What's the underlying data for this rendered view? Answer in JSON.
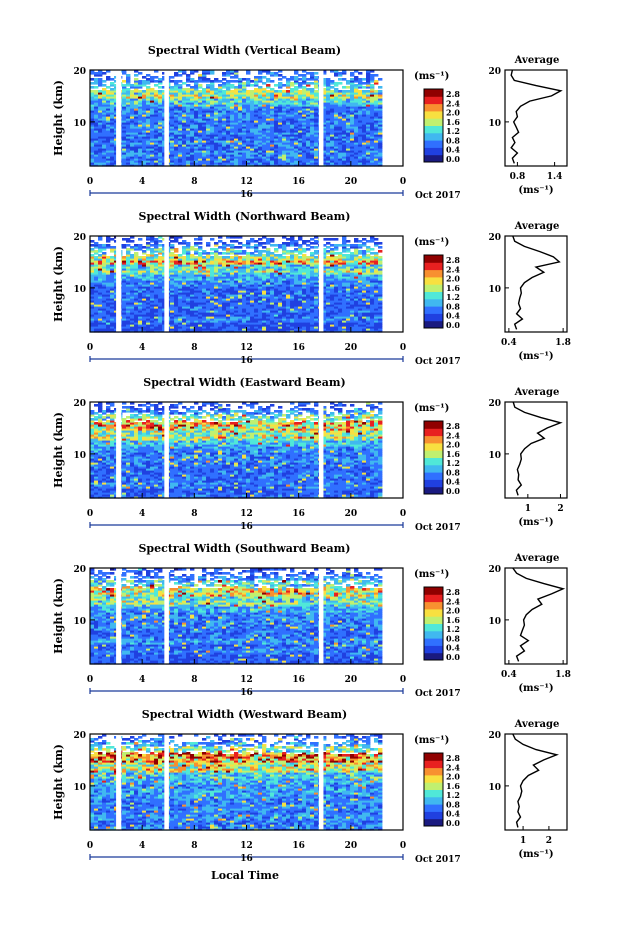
{
  "figure": {
    "xlabel": "Local Time",
    "date_label": "Oct 2017",
    "day_label": "16",
    "avg_title": "Average",
    "colorbar_unit": "(ms⁻¹)",
    "avg_unit": "(ms⁻¹)",
    "colormap": [
      "#1a1a80",
      "#2040e0",
      "#3070ff",
      "#40b8f0",
      "#50e8d8",
      "#c0f070",
      "#f8e040",
      "#f89030",
      "#e82020",
      "#900000"
    ]
  },
  "chart_data": [
    {
      "type": "heatmap",
      "title": "Spectral Width (Vertical Beam)",
      "ylabel": "Height (km)",
      "xlabel": "Local Time",
      "xlim": [
        0,
        24
      ],
      "ylim": [
        1.5,
        20
      ],
      "xticks": [
        "0",
        "4",
        "8",
        "12",
        "16",
        "20",
        "0"
      ],
      "yticks": [
        "10",
        "20"
      ],
      "colorbar": {
        "min": 0.0,
        "max": 2.8,
        "ticks": [
          "0.0",
          "0.4",
          "0.8",
          "1.2",
          "1.6",
          "2.0",
          "2.4",
          "2.8"
        ]
      },
      "average_profile": {
        "xticks": [
          "0.8",
          "1.4"
        ],
        "xlim": [
          0.6,
          1.6
        ],
        "height_km": [
          2,
          3,
          4,
          5,
          6,
          7,
          8,
          9,
          10,
          11,
          12,
          13,
          14,
          15,
          16,
          17,
          18,
          19,
          20
        ],
        "values": [
          0.75,
          0.72,
          0.8,
          0.7,
          0.76,
          0.72,
          0.82,
          0.78,
          0.74,
          0.8,
          0.78,
          0.85,
          1.0,
          1.35,
          1.5,
          1.1,
          0.75,
          0.7,
          0.72
        ]
      }
    },
    {
      "type": "heatmap",
      "title": "Spectral Width (Northward Beam)",
      "ylabel": "Height (km)",
      "xlabel": "Local Time",
      "xlim": [
        0,
        24
      ],
      "ylim": [
        1.5,
        20
      ],
      "xticks": [
        "0",
        "4",
        "8",
        "12",
        "16",
        "20",
        "0"
      ],
      "yticks": [
        "10",
        "20"
      ],
      "colorbar": {
        "min": 0.0,
        "max": 2.8,
        "ticks": [
          "0.0",
          "0.4",
          "0.8",
          "1.2",
          "1.6",
          "2.0",
          "2.4",
          "2.8"
        ]
      },
      "average_profile": {
        "xticks": [
          "0.4",
          "1.8"
        ],
        "xlim": [
          0.3,
          1.9
        ],
        "height_km": [
          2,
          3,
          4,
          5,
          6,
          7,
          8,
          9,
          10,
          11,
          12,
          13,
          14,
          15,
          16,
          17,
          18,
          19,
          20
        ],
        "values": [
          0.6,
          0.55,
          0.75,
          0.6,
          0.7,
          0.65,
          0.68,
          0.72,
          0.7,
          0.8,
          1.0,
          1.3,
          1.1,
          1.7,
          1.55,
          1.2,
          0.8,
          0.55,
          0.5
        ]
      }
    },
    {
      "type": "heatmap",
      "title": "Spectral Width (Eastward Beam)",
      "ylabel": "Height (km)",
      "xlabel": "Local Time",
      "xlim": [
        0,
        24
      ],
      "ylim": [
        1.5,
        20
      ],
      "xticks": [
        "0",
        "4",
        "8",
        "12",
        "16",
        "20",
        "0"
      ],
      "yticks": [
        "10",
        "20"
      ],
      "colorbar": {
        "min": 0.0,
        "max": 2.8,
        "ticks": [
          "0.0",
          "0.4",
          "0.8",
          "1.2",
          "1.6",
          "2.0",
          "2.4",
          "2.8"
        ]
      },
      "average_profile": {
        "xticks": [
          "1",
          "2"
        ],
        "xlim": [
          0.3,
          2.2
        ],
        "height_km": [
          2,
          3,
          4,
          5,
          6,
          7,
          8,
          9,
          10,
          11,
          12,
          13,
          14,
          15,
          16,
          17,
          18,
          19,
          20
        ],
        "values": [
          0.7,
          0.65,
          0.8,
          0.7,
          0.72,
          0.68,
          0.75,
          0.8,
          0.78,
          0.9,
          1.1,
          1.5,
          1.3,
          1.6,
          2.0,
          1.4,
          0.9,
          0.6,
          0.55
        ]
      }
    },
    {
      "type": "heatmap",
      "title": "Spectral Width (Southward Beam)",
      "ylabel": "Height (km)",
      "xlabel": "Local Time",
      "xlim": [
        0,
        24
      ],
      "ylim": [
        1.5,
        20
      ],
      "xticks": [
        "0",
        "4",
        "8",
        "12",
        "16",
        "20",
        "0"
      ],
      "yticks": [
        "10",
        "20"
      ],
      "colorbar": {
        "min": 0.0,
        "max": 2.8,
        "ticks": [
          "0.0",
          "0.4",
          "0.8",
          "1.2",
          "1.6",
          "2.0",
          "2.4",
          "2.8"
        ]
      },
      "average_profile": {
        "xticks": [
          "0.4",
          "1.8"
        ],
        "xlim": [
          0.3,
          1.9
        ],
        "height_km": [
          2,
          3,
          4,
          5,
          6,
          7,
          8,
          9,
          10,
          11,
          12,
          13,
          14,
          15,
          16,
          17,
          18,
          19,
          20
        ],
        "values": [
          0.65,
          0.6,
          0.8,
          0.7,
          0.9,
          0.7,
          0.75,
          0.8,
          0.78,
          0.85,
          1.0,
          1.25,
          1.15,
          1.5,
          1.8,
          1.3,
          0.85,
          0.6,
          0.5
        ]
      }
    },
    {
      "type": "heatmap",
      "title": "Spectral Width (Westward Beam)",
      "ylabel": "Height (km)",
      "xlabel": "Local Time",
      "xlim": [
        0,
        24
      ],
      "ylim": [
        1.5,
        20
      ],
      "xticks": [
        "0",
        "4",
        "8",
        "12",
        "16",
        "20",
        "0"
      ],
      "yticks": [
        "10",
        "20"
      ],
      "colorbar": {
        "min": 0.0,
        "max": 2.8,
        "ticks": [
          "0.0",
          "0.4",
          "0.8",
          "1.2",
          "1.6",
          "2.0",
          "2.4",
          "2.8"
        ]
      },
      "average_profile": {
        "xticks": [
          "1",
          "2"
        ],
        "xlim": [
          0.3,
          2.7
        ],
        "height_km": [
          2,
          3,
          4,
          5,
          6,
          7,
          8,
          9,
          10,
          11,
          12,
          13,
          14,
          15,
          16,
          17,
          18,
          19,
          20
        ],
        "values": [
          0.8,
          0.75,
          0.9,
          0.8,
          0.85,
          0.8,
          0.9,
          0.95,
          0.9,
          1.0,
          1.2,
          1.6,
          1.4,
          1.8,
          2.3,
          1.5,
          1.0,
          0.7,
          0.6
        ]
      }
    }
  ]
}
